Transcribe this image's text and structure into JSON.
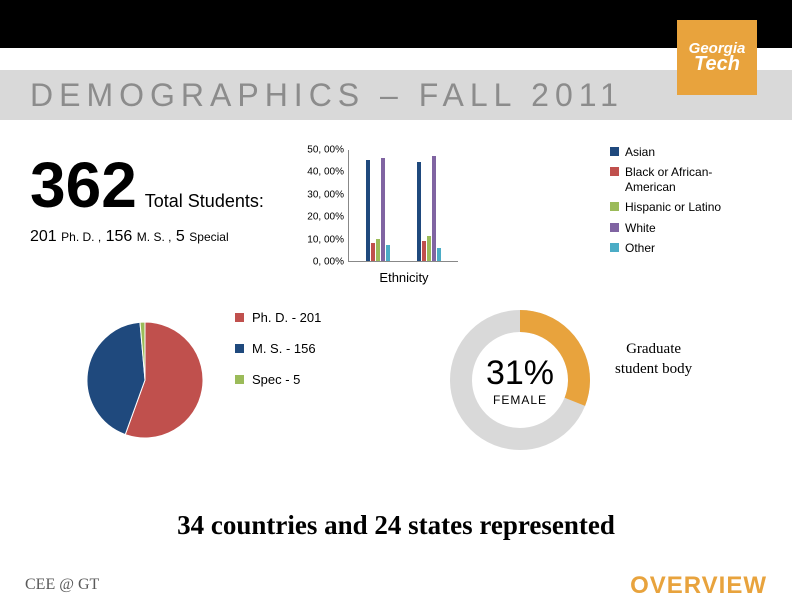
{
  "page": {
    "title": "DEMOGRAPHICS – FALL 2011",
    "logo_line1": "Georgia",
    "logo_line2": "Tech",
    "logo_bg": "#e8a33d",
    "title_bg": "#d9d9d9",
    "title_color": "#8c8c8c"
  },
  "total": {
    "number": "362",
    "label": "Total Students:"
  },
  "breakdown": {
    "phd_n": "201",
    "phd_l": "Ph. D. ,",
    "ms_n": "156",
    "ms_l": "M. S. ,",
    "sp_n": "5",
    "sp_l": "Special"
  },
  "ethnicity_chart": {
    "type": "bar",
    "x_label": "Ethnicity",
    "ymax": 50,
    "ticks": [
      "50, 00%",
      "40, 00%",
      "30, 00%",
      "20, 00%",
      "10, 00%",
      "0, 00%"
    ],
    "legend": [
      {
        "label": "Asian",
        "color": "#1f497d"
      },
      {
        "label": "Black or African-American",
        "color": "#c0504d"
      },
      {
        "label": "Hispanic or Latino",
        "color": "#9bbb59"
      },
      {
        "label": "White",
        "color": "#8064a2"
      },
      {
        "label": "Other",
        "color": "#4bacc6"
      }
    ],
    "groups": [
      {
        "values": [
          45,
          8,
          10,
          46,
          7
        ]
      },
      {
        "values": [
          44,
          9,
          11,
          47,
          6
        ]
      }
    ],
    "colors": [
      "#1f497d",
      "#c0504d",
      "#9bbb59",
      "#8064a2",
      "#4bacc6"
    ]
  },
  "pie": {
    "type": "pie",
    "slices": [
      {
        "label": "Ph. D.  - 201",
        "value": 201,
        "color": "#c0504d"
      },
      {
        "label": "M. S.  - 156",
        "value": 156,
        "color": "#1f497d"
      },
      {
        "label": "Spec  - 5",
        "value": 5,
        "color": "#9bbb59"
      }
    ],
    "total": 362
  },
  "donut": {
    "percent": "31%",
    "label": "FEMALE",
    "value": 31,
    "ring_color": "#e8a33d",
    "ring_bg": "#d9d9d9",
    "side_text_1": "Graduate",
    "side_text_2": "student body"
  },
  "countries": "34 countries and 24 states represented",
  "footer": {
    "left": "CEE @ GT",
    "right": "OVERVIEW",
    "right_color": "#e8a33d"
  }
}
